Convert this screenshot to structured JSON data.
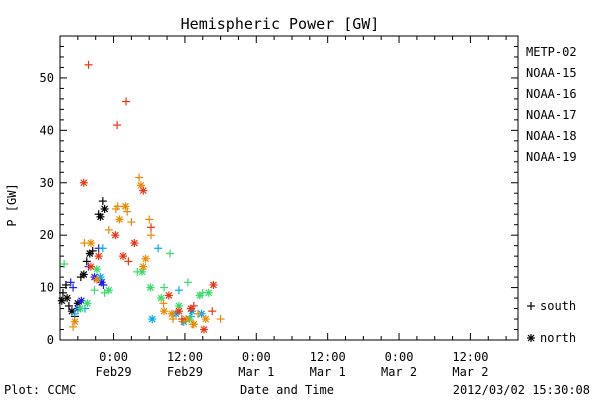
{
  "chart_data": {
    "type": "scatter",
    "title": "Hemispheric Power [GW]",
    "ylabel": "P [GW]",
    "xlabel": "Date and Time",
    "ylim": [
      0,
      58
    ],
    "xlim_hours": [
      -9,
      68
    ],
    "yticks": [
      0,
      10,
      20,
      30,
      40,
      50
    ],
    "xticks": [
      {
        "x": 0,
        "time": "0:00",
        "date": "Feb29"
      },
      {
        "x": 12,
        "time": "12:00",
        "date": "Feb29"
      },
      {
        "x": 24,
        "time": "0:00",
        "date": "Mar 1"
      },
      {
        "x": 36,
        "time": "12:00",
        "date": "Mar 1"
      },
      {
        "x": 48,
        "time": "0:00",
        "date": "Mar 2"
      },
      {
        "x": 60,
        "time": "12:00",
        "date": "Mar 2"
      }
    ],
    "hemisphere_legend": [
      {
        "symbol": "+",
        "label": "south"
      },
      {
        "symbol": "*",
        "label": "north"
      }
    ],
    "series": [
      {
        "name": "METP-02",
        "color": "#000000",
        "south": [
          [
            -8.5,
            9.0
          ],
          [
            -7.5,
            6.5
          ],
          [
            -6.5,
            4.5
          ],
          [
            -5.5,
            12.0
          ],
          [
            -4.5,
            15.0
          ],
          [
            -3.5,
            17.0
          ],
          [
            -2.5,
            24.0
          ],
          [
            -1.8,
            26.5
          ],
          [
            -8.0,
            10.5
          ]
        ],
        "north": [
          [
            -8.7,
            7.5
          ],
          [
            -7.8,
            8.0
          ],
          [
            -7.0,
            5.5
          ],
          [
            -6.0,
            7.0
          ],
          [
            -5.0,
            12.5
          ],
          [
            -4.0,
            16.5
          ],
          [
            -2.2,
            23.5
          ],
          [
            -1.5,
            25.0
          ]
        ]
      },
      {
        "name": "NOAA-15",
        "color": "#1a1aff",
        "south": [
          [
            -7.2,
            11.0
          ],
          [
            -6.8,
            10.0
          ],
          [
            -4.2,
            14.0
          ],
          [
            -2.5,
            17.5
          ],
          [
            -1.7,
            10.5
          ]
        ],
        "north": [
          [
            -6.0,
            6.0
          ],
          [
            -5.4,
            7.5
          ],
          [
            -3.2,
            12.0
          ],
          [
            -2.0,
            11.0
          ]
        ]
      },
      {
        "name": "NOAA-16",
        "color": "#00aaee",
        "south": [
          [
            -6.5,
            5.0
          ],
          [
            -4.8,
            6.0
          ],
          [
            -1.8,
            17.5
          ],
          [
            7.5,
            17.5
          ],
          [
            11.0,
            9.5
          ],
          [
            13.0,
            4.5
          ]
        ],
        "north": [
          [
            -2.2,
            12.0
          ],
          [
            6.5,
            4.0
          ],
          [
            10.5,
            5.0
          ],
          [
            11.8,
            3.5
          ],
          [
            13.2,
            5.5
          ],
          [
            14.8,
            5.0
          ]
        ]
      },
      {
        "name": "NOAA-17",
        "color": "#33dd66",
        "south": [
          [
            -8.3,
            14.5
          ],
          [
            -3.2,
            9.5
          ],
          [
            -1.5,
            9.0
          ],
          [
            4.0,
            13.0
          ],
          [
            8.5,
            10.0
          ],
          [
            9.5,
            16.5
          ],
          [
            12.5,
            11.0
          ],
          [
            15.0,
            9.0
          ]
        ],
        "north": [
          [
            -5.6,
            6.0
          ],
          [
            -4.4,
            7.0
          ],
          [
            -2.8,
            13.5
          ],
          [
            -0.8,
            9.5
          ],
          [
            4.8,
            13.0
          ],
          [
            6.2,
            10.0
          ],
          [
            8.0,
            8.0
          ],
          [
            11.0,
            6.5
          ],
          [
            12.8,
            4.0
          ],
          [
            14.5,
            8.5
          ],
          [
            16.0,
            9.0
          ]
        ]
      },
      {
        "name": "NOAA-18",
        "color": "#ee8800",
        "south": [
          [
            -6.8,
            2.5
          ],
          [
            -4.9,
            18.5
          ],
          [
            -0.8,
            21.0
          ],
          [
            0.4,
            25.0
          ],
          [
            0.7,
            25.5
          ],
          [
            2.3,
            24.5
          ],
          [
            3.0,
            22.5
          ],
          [
            4.3,
            31.0
          ],
          [
            6.0,
            23.0
          ],
          [
            6.3,
            20.0
          ],
          [
            8.4,
            7.0
          ],
          [
            10.0,
            4.0
          ],
          [
            11.6,
            3.5
          ],
          [
            13.3,
            3.0
          ],
          [
            14.2,
            5.0
          ],
          [
            18.0,
            4.0
          ]
        ],
        "north": [
          [
            -6.5,
            3.5
          ],
          [
            -3.8,
            18.5
          ],
          [
            -2.8,
            11.5
          ],
          [
            1.0,
            23.0
          ],
          [
            2.0,
            25.5
          ],
          [
            4.6,
            29.5
          ],
          [
            5.0,
            14.0
          ],
          [
            5.4,
            15.5
          ],
          [
            8.5,
            5.5
          ],
          [
            9.8,
            5.0
          ],
          [
            12.2,
            4.0
          ],
          [
            13.5,
            3.0
          ],
          [
            15.5,
            4.0
          ]
        ]
      },
      {
        "name": "NOAA-19",
        "color": "#ee3311",
        "south": [
          [
            -4.2,
            52.5
          ],
          [
            0.6,
            41.0
          ],
          [
            2.1,
            45.5
          ],
          [
            2.5,
            15.0
          ],
          [
            6.3,
            21.5
          ],
          [
            11.5,
            4.0
          ],
          [
            13.5,
            6.5
          ],
          [
            16.6,
            5.5
          ]
        ],
        "north": [
          [
            -5.0,
            30.0
          ],
          [
            -3.8,
            14.0
          ],
          [
            -2.5,
            16.0
          ],
          [
            0.3,
            20.0
          ],
          [
            1.6,
            16.0
          ],
          [
            3.5,
            18.5
          ],
          [
            5.0,
            28.5
          ],
          [
            9.3,
            8.5
          ],
          [
            11.0,
            5.5
          ],
          [
            13.0,
            6.0
          ],
          [
            15.2,
            2.0
          ],
          [
            16.8,
            10.5
          ]
        ]
      }
    ]
  },
  "footer": {
    "plot_source": "Plot: CCMC",
    "timestamp": "2012/03/02 15:30:08"
  }
}
